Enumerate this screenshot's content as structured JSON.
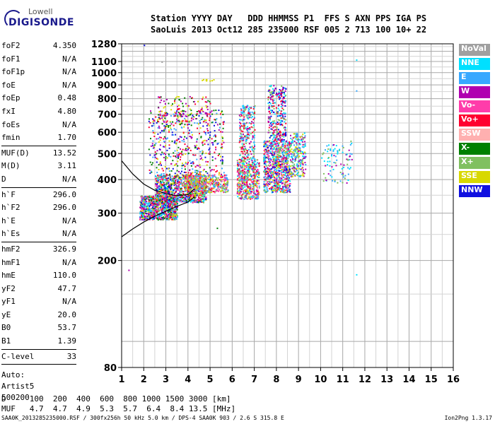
{
  "logo": {
    "line1": "Lowell",
    "line2": "DIGISONDE"
  },
  "header": {
    "labels": [
      "Station",
      "YYYY",
      "DAY",
      "DDD",
      "HHMMSS",
      "P1",
      "FFS",
      "S",
      "AXN",
      "PPS",
      "IGA",
      "PS"
    ],
    "values": [
      "SaoLuis",
      "2013",
      "Oct12",
      "285",
      "235000",
      "RSF",
      "005",
      "2",
      "713",
      "100",
      "10+",
      "22"
    ],
    "line1": "Station YYYY DAY   DDD HHMMSS P1  FFS S AXN PPS IGA PS",
    "line2": "SaoLuis 2013 Oct12 285 235000 RSF 005 2 713 100 10+ 22"
  },
  "params": {
    "group1": [
      {
        "name": "foF2",
        "value": "4.350"
      },
      {
        "name": "foF1",
        "value": "N/A"
      },
      {
        "name": "foF1p",
        "value": "N/A"
      },
      {
        "name": "foE",
        "value": "N/A"
      },
      {
        "name": "foEp",
        "value": "0.48"
      },
      {
        "name": "fxI",
        "value": "4.80"
      },
      {
        "name": "foEs",
        "value": "N/A"
      },
      {
        "name": "fmin",
        "value": "1.70"
      }
    ],
    "group2": [
      {
        "name": "MUF(D)",
        "value": "13.52"
      },
      {
        "name": "M(D)",
        "value": "3.11"
      },
      {
        "name": "D",
        "value": "N/A"
      }
    ],
    "group3": [
      {
        "name": "h`F",
        "value": "296.0"
      },
      {
        "name": "h`F2",
        "value": "296.0"
      },
      {
        "name": "h`E",
        "value": "N/A"
      },
      {
        "name": "h`Es",
        "value": "N/A"
      }
    ],
    "group4": [
      {
        "name": "hmF2",
        "value": "326.9"
      },
      {
        "name": "hmF1",
        "value": "N/A"
      },
      {
        "name": "hmE",
        "value": "110.0"
      },
      {
        "name": "yF2",
        "value": "47.7"
      },
      {
        "name": "yF1",
        "value": "N/A"
      },
      {
        "name": "yE",
        "value": "20.0"
      },
      {
        "name": "B0",
        "value": "53.7"
      },
      {
        "name": "B1",
        "value": "1.39"
      }
    ],
    "group5": [
      {
        "name": "C-level",
        "value": "33"
      }
    ],
    "auto": [
      "Auto:",
      "Artist5",
      "500200"
    ]
  },
  "legend": [
    {
      "label": "NoVal",
      "color": "#a0a0a0"
    },
    {
      "label": "NNE",
      "color": "#00e0ff"
    },
    {
      "label": "E",
      "color": "#38a8ff"
    },
    {
      "label": "W",
      "color": "#b000b0"
    },
    {
      "label": "Vo-",
      "color": "#ff3caa"
    },
    {
      "label": "Vo+",
      "color": "#ff0030"
    },
    {
      "label": "SSW",
      "color": "#ffb0b0"
    },
    {
      "label": "X-",
      "color": "#008000"
    },
    {
      "label": "X+",
      "color": "#80c060"
    },
    {
      "label": "SSE",
      "color": "#d8d800"
    },
    {
      "label": "NNW",
      "color": "#1010e0"
    }
  ],
  "footer": {
    "line1": "D     100  200  400  600  800 1000 1500 3000 [km]",
    "line2": "MUF   4.7  4.7  4.9  5.3  5.7  6.4  8.4 13.5 [MHz]",
    "file": "SAA0K_2013285235000.RSF / 300fx256h 50 kHz 5.0 km / DPS-4 SAA0K 903 / 2.6 S 315.8 E",
    "version": "Ion2Png 1.3.17"
  },
  "chart_data": {
    "type": "scatter",
    "title": "",
    "xlabel": "",
    "ylabel": "",
    "xlim": [
      1,
      16
    ],
    "ylim_log": [
      80,
      1280
    ],
    "x_ticks": [
      1,
      2,
      3,
      4,
      5,
      6,
      7,
      8,
      9,
      10,
      11,
      12,
      13,
      14,
      15,
      16
    ],
    "y_ticks": [
      80,
      200,
      300,
      400,
      500,
      600,
      700,
      800,
      900,
      1000,
      1100,
      1280
    ],
    "y_scale": "log",
    "grid": true,
    "clusters": [
      {
        "x": [
          1.8,
          3.5
        ],
        "y": [
          285,
          350
        ],
        "n": 900,
        "colors": [
          5,
          4,
          3,
          2,
          1,
          9,
          7,
          8,
          10
        ]
      },
      {
        "x": [
          2.5,
          4.8
        ],
        "y": [
          330,
          420
        ],
        "n": 900,
        "colors": [
          9,
          5,
          4,
          3,
          1,
          2,
          7,
          8,
          10
        ]
      },
      {
        "x": [
          3.8,
          5.8
        ],
        "y": [
          360,
          420
        ],
        "n": 450,
        "colors": [
          9,
          8,
          5,
          4,
          2
        ]
      },
      {
        "x": [
          2.2,
          5.6
        ],
        "y": [
          420,
          730
        ],
        "n": 500,
        "colors": [
          9,
          3,
          5,
          7,
          10,
          2
        ]
      },
      {
        "x": [
          2.6,
          5.0
        ],
        "y": [
          660,
          820
        ],
        "n": 120,
        "colors": [
          3,
          5,
          9,
          7
        ]
      },
      {
        "x": [
          6.2,
          7.2
        ],
        "y": [
          340,
          480
        ],
        "n": 500,
        "colors": [
          5,
          4,
          3,
          1,
          2,
          8,
          9
        ]
      },
      {
        "x": [
          6.3,
          7.0
        ],
        "y": [
          480,
          760
        ],
        "n": 250,
        "colors": [
          3,
          5,
          1,
          2,
          8
        ]
      },
      {
        "x": [
          7.4,
          8.6
        ],
        "y": [
          360,
          560
        ],
        "n": 800,
        "colors": [
          1,
          2,
          3,
          5,
          10,
          4,
          8,
          9
        ]
      },
      {
        "x": [
          7.6,
          8.4
        ],
        "y": [
          560,
          900
        ],
        "n": 300,
        "colors": [
          3,
          5,
          1,
          8,
          10
        ]
      },
      {
        "x": [
          8.6,
          9.3
        ],
        "y": [
          410,
          600
        ],
        "n": 250,
        "colors": [
          2,
          1,
          3,
          8,
          9
        ]
      },
      {
        "x": [
          10.0,
          11.4
        ],
        "y": [
          390,
          560
        ],
        "n": 90,
        "colors": [
          2,
          1,
          3,
          8
        ]
      },
      {
        "x": [
          4.4,
          5.2
        ],
        "y": [
          935,
          950
        ],
        "n": 10,
        "colors": [
          9
        ]
      }
    ],
    "lines": [
      {
        "name": "o-trace",
        "points": [
          [
            1.0,
            245
          ],
          [
            1.5,
            262
          ],
          [
            2.0,
            278
          ],
          [
            2.5,
            292
          ],
          [
            3.0,
            305
          ],
          [
            3.5,
            318
          ],
          [
            4.0,
            330
          ],
          [
            4.3,
            345
          ]
        ]
      },
      {
        "name": "profile",
        "points": [
          [
            1.0,
            470
          ],
          [
            1.5,
            420
          ],
          [
            2.0,
            385
          ],
          [
            2.5,
            365
          ],
          [
            3.0,
            355
          ],
          [
            3.5,
            348
          ],
          [
            4.0,
            352
          ],
          [
            4.3,
            370
          ]
        ]
      }
    ]
  }
}
